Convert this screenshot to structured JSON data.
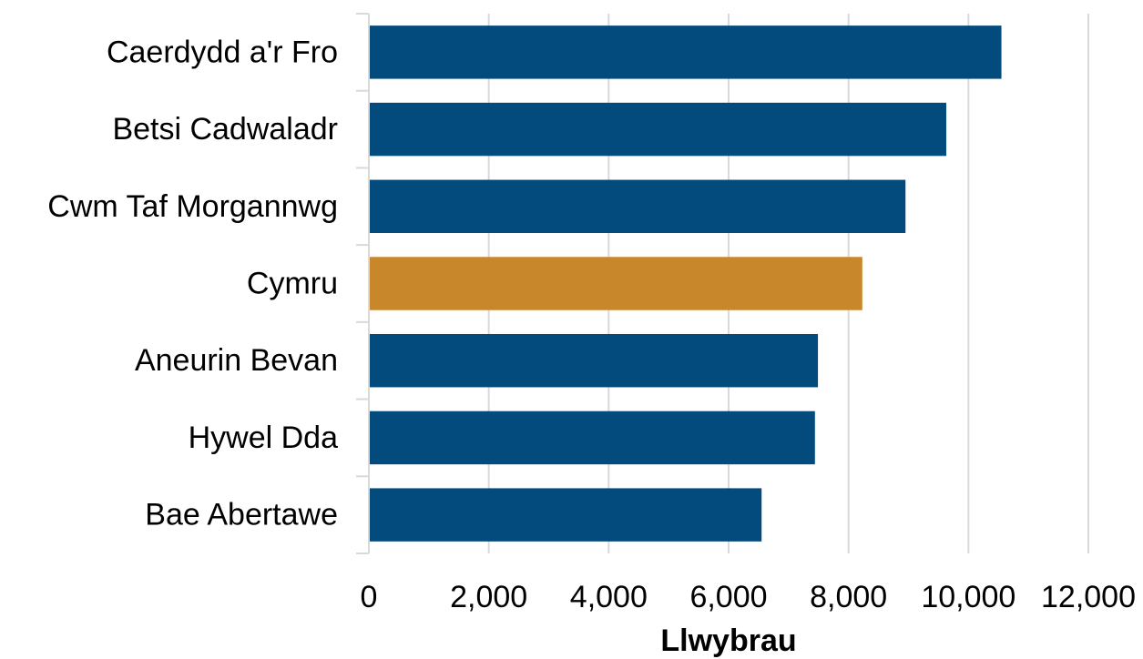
{
  "chart_data": {
    "type": "bar",
    "orientation": "horizontal",
    "categories": [
      "Caerdydd a'r Fro",
      "Betsi Cadwaladr",
      "Cwm Taf Morgannwg",
      "Cymru",
      "Aneurin Bevan",
      "Hywel Dda",
      "Bae Abertawe"
    ],
    "values": [
      10550,
      9630,
      8950,
      8230,
      7490,
      7440,
      6550
    ],
    "highlight_category": "Cymru",
    "xlabel": "Llwybrau",
    "ylabel": "",
    "xlim": [
      0,
      12000
    ],
    "xticks": [
      0,
      2000,
      4000,
      6000,
      8000,
      10000,
      12000
    ],
    "xtick_labels": [
      "0",
      "2,000",
      "4,000",
      "6,000",
      "8,000",
      "10,000",
      "12,000"
    ],
    "grid": "vertical",
    "legend": "none"
  },
  "colors": {
    "bar": "#034a7d",
    "highlight": "#c8872a",
    "grid": "#d9d9d9"
  }
}
